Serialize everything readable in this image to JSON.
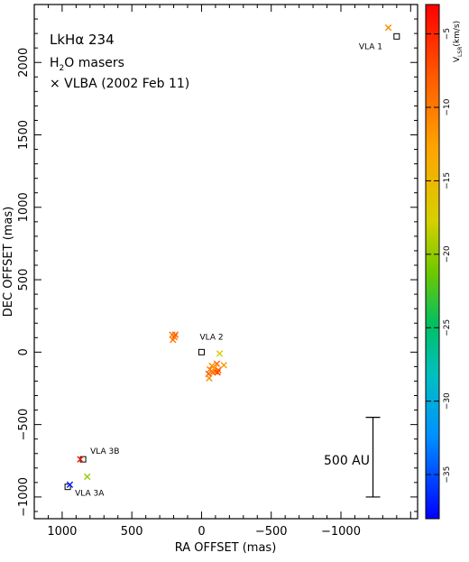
{
  "chart_data": {
    "type": "scatter",
    "annotations": {
      "title": "LkHα 234",
      "subtitle_main": "H",
      "subtitle_sub": "2",
      "subtitle_rest": "O masers",
      "legend": "× VLBA (2002 Feb 11)",
      "scalebar_label": "500 AU"
    },
    "xlabel": "RA OFFSET (mas)",
    "ylabel": "DEC OFFSET (mas)",
    "xlim": [
      1200,
      -1550
    ],
    "ylim": [
      -1150,
      2400
    ],
    "xticks": [
      1000,
      500,
      0,
      -500,
      -1000
    ],
    "xtick_labels": [
      "1000",
      "500",
      "0",
      "−500",
      "−1000"
    ],
    "yticks": [
      -1000,
      -500,
      0,
      500,
      1000,
      1500,
      2000
    ],
    "ytick_labels": [
      "−1000",
      "−500",
      "0",
      "500",
      "1000",
      "1500",
      "2000"
    ],
    "colorbar": {
      "label": "V",
      "label_sub": "LSR",
      "label_unit": "(km/s)",
      "vmin": -38,
      "vmax": -3,
      "ticks": [
        -5,
        -10,
        -15,
        -20,
        -25,
        -30,
        -35
      ],
      "tick_labels": [
        "−5",
        "−10",
        "−15",
        "−20",
        "−25",
        "−30",
        "−35"
      ]
    },
    "scalebar": {
      "x": -1230,
      "y_bottom": -1000,
      "y_top": -450
    },
    "sources": [
      {
        "name": "VLA 1",
        "x": -1400,
        "y": 2180
      },
      {
        "name": "VLA 2",
        "x": 0,
        "y": 0
      },
      {
        "name": "VLA 3B",
        "x": 850,
        "y": -740
      },
      {
        "name": "VLA 3A",
        "x": 960,
        "y": -930
      }
    ],
    "series": [
      {
        "marker": "x",
        "points": [
          {
            "x": -1340,
            "y": 2240,
            "v": -11
          },
          {
            "x": 210,
            "y": 120,
            "v": -10
          },
          {
            "x": 195,
            "y": 105,
            "v": -9
          },
          {
            "x": 205,
            "y": 85,
            "v": -10
          },
          {
            "x": 188,
            "y": 120,
            "v": -8
          },
          {
            "x": -130,
            "y": -10,
            "v": -17
          },
          {
            "x": -160,
            "y": -90,
            "v": -12
          },
          {
            "x": -110,
            "y": -80,
            "v": -9
          },
          {
            "x": -75,
            "y": -95,
            "v": -11
          },
          {
            "x": -95,
            "y": -110,
            "v": -13
          },
          {
            "x": -60,
            "y": -120,
            "v": -10
          },
          {
            "x": -120,
            "y": -125,
            "v": -8
          },
          {
            "x": -80,
            "y": -140,
            "v": -9
          },
          {
            "x": -100,
            "y": -135,
            "v": -10
          },
          {
            "x": -50,
            "y": -150,
            "v": -8
          },
          {
            "x": -55,
            "y": -180,
            "v": -11
          },
          {
            "x": -115,
            "y": -140,
            "v": -7
          },
          {
            "x": 870,
            "y": -740,
            "v": -4
          },
          {
            "x": 820,
            "y": -860,
            "v": -20
          },
          {
            "x": 945,
            "y": -915,
            "v": -37
          }
        ]
      }
    ]
  }
}
